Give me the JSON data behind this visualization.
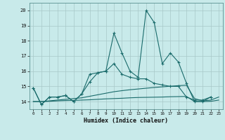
{
  "xlabel": "Humidex (Indice chaleur)",
  "background_color": "#c8eaea",
  "grid_color": "#a8c8c8",
  "line_color": "#1a6b6b",
  "xlim": [
    -0.5,
    23.5
  ],
  "ylim": [
    13.5,
    20.5
  ],
  "yticks": [
    14,
    15,
    16,
    17,
    18,
    19,
    20
  ],
  "xticks": [
    0,
    1,
    2,
    3,
    4,
    5,
    6,
    7,
    8,
    9,
    10,
    11,
    12,
    13,
    14,
    15,
    16,
    17,
    18,
    19,
    20,
    21,
    22,
    23
  ],
  "line1_x": [
    0,
    1,
    2,
    3,
    4,
    5,
    6,
    7,
    8,
    9,
    10,
    11,
    12,
    13,
    14,
    15,
    16,
    17,
    18,
    19,
    20,
    21,
    22
  ],
  "line1_y": [
    14.9,
    13.8,
    14.3,
    14.3,
    14.4,
    14.0,
    14.5,
    15.8,
    15.9,
    16.0,
    18.5,
    17.2,
    16.0,
    15.6,
    20.0,
    19.2,
    16.5,
    17.2,
    16.6,
    15.2,
    14.0,
    14.0,
    14.3
  ],
  "line2_x": [
    0,
    1,
    2,
    3,
    4,
    5,
    6,
    7,
    8,
    9,
    10,
    11,
    12,
    13,
    14,
    15,
    16,
    17,
    18,
    19,
    20,
    21,
    22
  ],
  "line2_y": [
    14.9,
    13.8,
    14.3,
    14.3,
    14.4,
    14.0,
    14.5,
    15.3,
    15.9,
    16.0,
    16.5,
    15.8,
    15.6,
    15.5,
    15.5,
    15.2,
    15.1,
    15.0,
    15.0,
    14.3,
    14.1,
    14.1,
    14.3
  ],
  "line3_x": [
    0,
    1,
    2,
    3,
    4,
    5,
    6,
    7,
    8,
    9,
    10,
    11,
    12,
    13,
    14,
    15,
    16,
    17,
    18,
    19,
    20,
    21,
    22,
    23
  ],
  "line3_y": [
    14.0,
    14.0,
    14.05,
    14.1,
    14.15,
    14.2,
    14.25,
    14.35,
    14.45,
    14.55,
    14.65,
    14.72,
    14.78,
    14.83,
    14.88,
    14.93,
    14.97,
    15.01,
    15.05,
    15.08,
    14.2,
    14.05,
    14.1,
    14.3
  ],
  "line4_x": [
    0,
    1,
    2,
    3,
    4,
    5,
    6,
    7,
    8,
    9,
    10,
    11,
    12,
    13,
    14,
    15,
    16,
    17,
    18,
    19,
    20,
    21,
    22,
    23
  ],
  "line4_y": [
    14.0,
    14.0,
    14.02,
    14.05,
    14.07,
    14.08,
    14.1,
    14.12,
    14.15,
    14.18,
    14.2,
    14.22,
    14.25,
    14.27,
    14.28,
    14.29,
    14.3,
    14.32,
    14.33,
    14.34,
    14.0,
    14.0,
    14.02,
    14.1
  ]
}
